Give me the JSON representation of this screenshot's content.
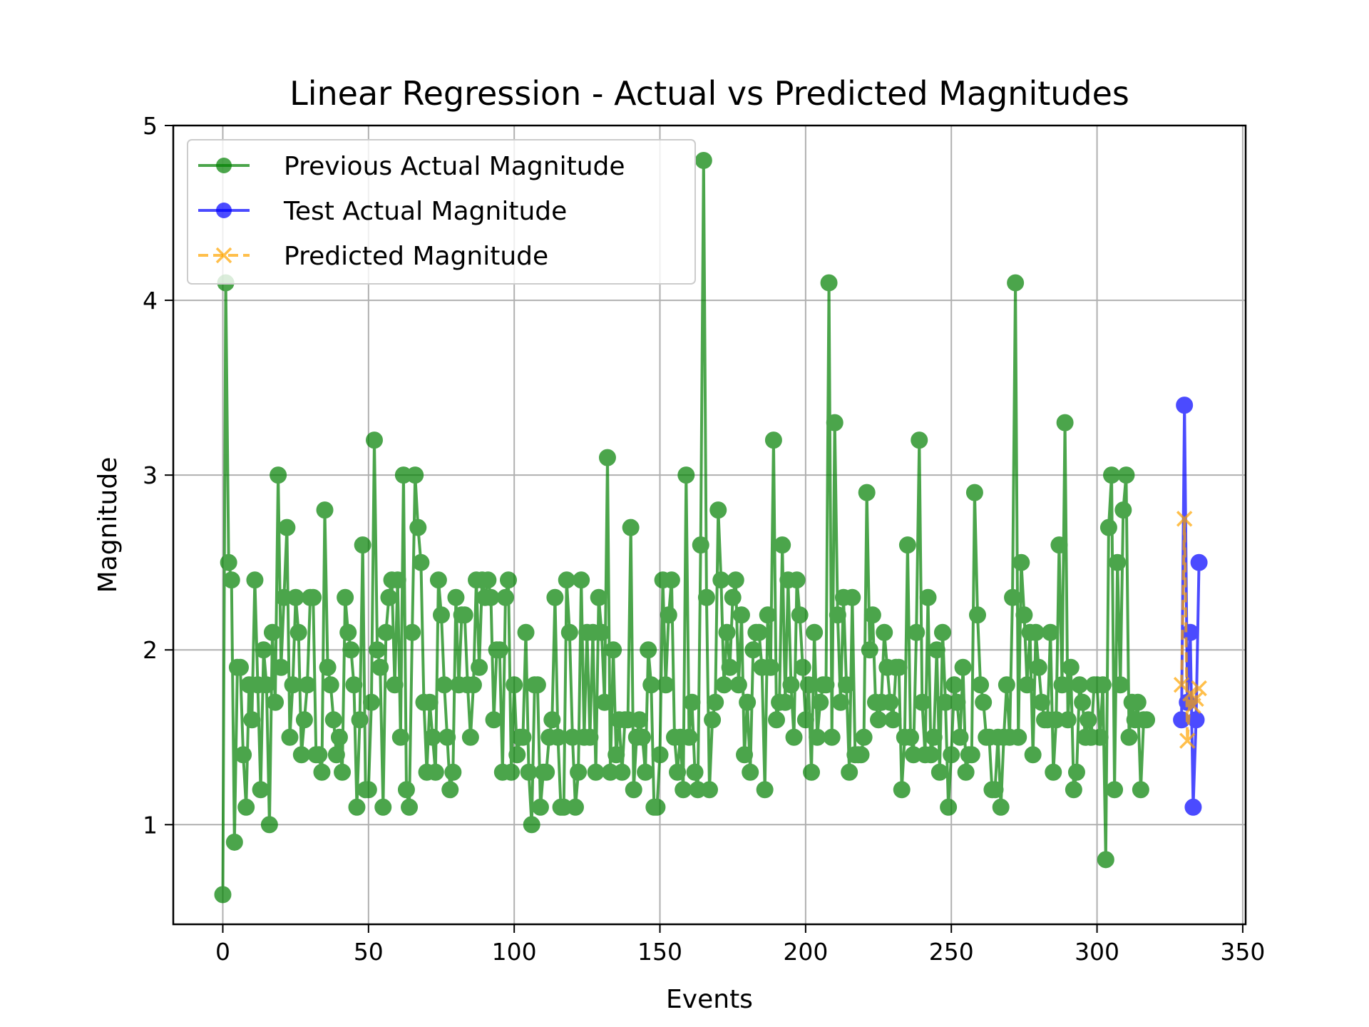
{
  "chart_data": {
    "type": "line",
    "title": "Linear Regression - Actual vs Predicted Magnitudes",
    "xlabel": "Events",
    "ylabel": "Magnitude",
    "xlim": [
      -17,
      351
    ],
    "ylim": [
      0.43,
      5.0
    ],
    "xticks": [
      0,
      50,
      100,
      150,
      200,
      250,
      300,
      350
    ],
    "yticks": [
      1,
      2,
      3,
      4,
      5
    ],
    "grid": true,
    "legend_position": "upper-left",
    "series": [
      {
        "name": "Previous Actual Magnitude",
        "color": "#008000",
        "style": "solid",
        "marker": "circle",
        "x_start": 0,
        "values": [
          0.6,
          4.1,
          2.5,
          2.4,
          0.9,
          1.9,
          1.9,
          1.4,
          1.1,
          1.8,
          1.6,
          2.4,
          1.8,
          1.2,
          2.0,
          1.8,
          1.0,
          2.1,
          1.7,
          3.0,
          1.9,
          2.3,
          2.7,
          1.5,
          1.8,
          2.3,
          2.1,
          1.4,
          1.6,
          1.8,
          2.3,
          2.3,
          1.4,
          1.4,
          1.3,
          2.8,
          1.9,
          1.8,
          1.6,
          1.4,
          1.5,
          1.3,
          2.3,
          2.1,
          2.0,
          1.8,
          1.1,
          1.6,
          2.6,
          1.2,
          1.2,
          1.7,
          3.2,
          2.0,
          1.9,
          1.1,
          2.1,
          2.3,
          2.4,
          1.8,
          2.4,
          1.5,
          3.0,
          1.2,
          1.1,
          2.1,
          3.0,
          2.7,
          2.5,
          1.7,
          1.3,
          1.7,
          1.5,
          1.3,
          2.4,
          2.2,
          1.8,
          1.5,
          1.2,
          1.3,
          2.3,
          1.8,
          2.2,
          2.2,
          1.8,
          1.5,
          1.8,
          2.4,
          1.9,
          2.4,
          2.3,
          2.4,
          2.3,
          1.6,
          2.0,
          2.0,
          1.3,
          2.3,
          2.4,
          1.3,
          1.8,
          1.4,
          1.5,
          1.5,
          2.1,
          1.3,
          1.0,
          1.8,
          1.8,
          1.1,
          1.3,
          1.3,
          1.5,
          1.6,
          2.3,
          1.5,
          1.1,
          1.1,
          2.4,
          2.1,
          1.5,
          1.1,
          1.3,
          2.4,
          1.5,
          2.1,
          1.5,
          2.1,
          1.3,
          2.3,
          2.1,
          1.7,
          3.1,
          1.3,
          2.0,
          1.4,
          1.6,
          1.3,
          1.6,
          1.6,
          2.7,
          1.2,
          1.5,
          1.6,
          1.5,
          1.3,
          2.0,
          1.8,
          1.1,
          1.1,
          1.4,
          2.4,
          1.8,
          2.2,
          2.4,
          1.5,
          1.3,
          1.5,
          1.2,
          3.0,
          1.5,
          1.7,
          1.3,
          1.2,
          2.6,
          4.8,
          2.3,
          1.2,
          1.6,
          1.7,
          2.8,
          2.4,
          1.8,
          2.1,
          1.9,
          2.3,
          2.4,
          1.8,
          2.2,
          1.4,
          1.7,
          1.3,
          2.0,
          2.1,
          2.1,
          1.9,
          1.2,
          2.2,
          1.9,
          3.2,
          1.6,
          1.7,
          2.6,
          1.7,
          2.4,
          1.8,
          1.5,
          2.4,
          2.2,
          1.9,
          1.6,
          1.8,
          1.3,
          2.1,
          1.5,
          1.7,
          1.8,
          1.8,
          4.1,
          1.5,
          3.3,
          2.2,
          1.7,
          2.3,
          1.8,
          1.3,
          2.3,
          1.4,
          1.4,
          1.4,
          1.5,
          2.9,
          2.0,
          2.2,
          1.7,
          1.6,
          1.7,
          2.1,
          1.9,
          1.7,
          1.6,
          1.9,
          1.9,
          1.2,
          1.5,
          2.6,
          1.5,
          1.4,
          2.1,
          3.2,
          1.7,
          1.4,
          2.3,
          1.4,
          1.5,
          2.0,
          1.3,
          2.1,
          1.7,
          1.1,
          1.4,
          1.8,
          1.7,
          1.5,
          1.9,
          1.3,
          1.4,
          1.4,
          2.9,
          2.2,
          1.8,
          1.7,
          1.5,
          1.5,
          1.2,
          1.2,
          1.5,
          1.1,
          1.5,
          1.8,
          1.5,
          2.3,
          4.1,
          1.5,
          2.5,
          2.2,
          1.8,
          2.1,
          1.4,
          2.1,
          1.9,
          1.7,
          1.6,
          1.6,
          2.1,
          1.3,
          1.6,
          2.6,
          1.8,
          3.3,
          1.6,
          1.9,
          1.2,
          1.3,
          1.8,
          1.7,
          1.5,
          1.6,
          1.5,
          1.8,
          1.8,
          1.5,
          1.8,
          0.8,
          2.7,
          3.0,
          1.2,
          2.5,
          1.8,
          2.8,
          3.0,
          1.5,
          1.7,
          1.6,
          1.7,
          1.2,
          1.6,
          1.6
        ]
      },
      {
        "name": "Test Actual Magnitude",
        "color": "#0000ff",
        "style": "solid",
        "marker": "circle",
        "x": [
          329,
          330,
          331,
          332,
          333,
          334,
          335
        ],
        "values": [
          1.6,
          3.4,
          1.7,
          2.1,
          1.1,
          1.6,
          2.5
        ]
      },
      {
        "name": "Predicted Magnitude",
        "color": "#ffa500",
        "style": "dashed",
        "marker": "x",
        "x": [
          329,
          330,
          331,
          332,
          333,
          334,
          335
        ],
        "values": [
          1.8,
          2.75,
          1.48,
          1.75,
          1.68,
          1.72,
          1.78
        ]
      }
    ]
  }
}
